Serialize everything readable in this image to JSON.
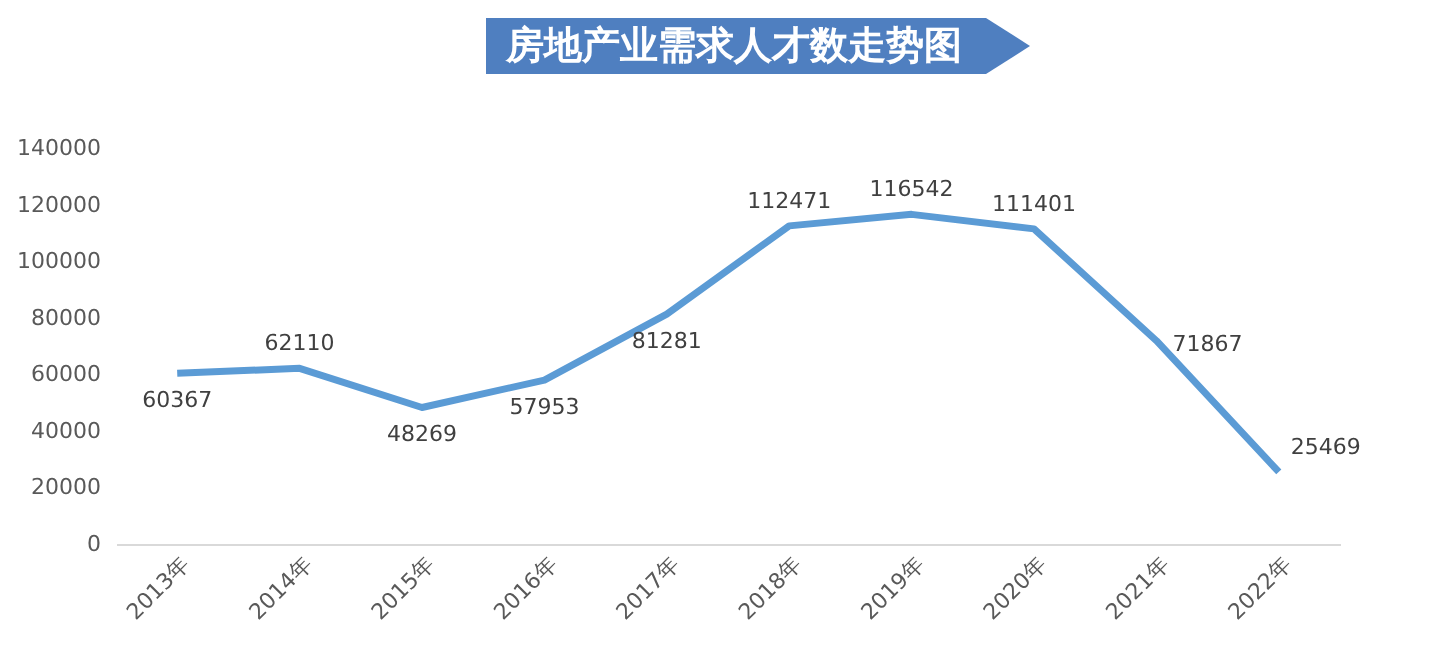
{
  "chart_data": {
    "type": "line",
    "title": "房地产业需求人才数走势图",
    "categories": [
      "2013年",
      "2014年",
      "2015年",
      "2016年",
      "2017年",
      "2018年",
      "2019年",
      "2020年",
      "2021年",
      "2022年"
    ],
    "series": [
      {
        "color": "#5b9bd5",
        "values": [
          60367,
          62110,
          48269,
          57953,
          81281,
          112471,
          116542,
          111401,
          71867,
          25469
        ]
      }
    ],
    "ylim": [
      0,
      140000
    ],
    "yticks": [
      0,
      20000,
      40000,
      60000,
      80000,
      100000,
      120000,
      140000
    ],
    "grid": false,
    "legend": false,
    "marker": "none",
    "line_style": "solid",
    "data_labels": true
  }
}
